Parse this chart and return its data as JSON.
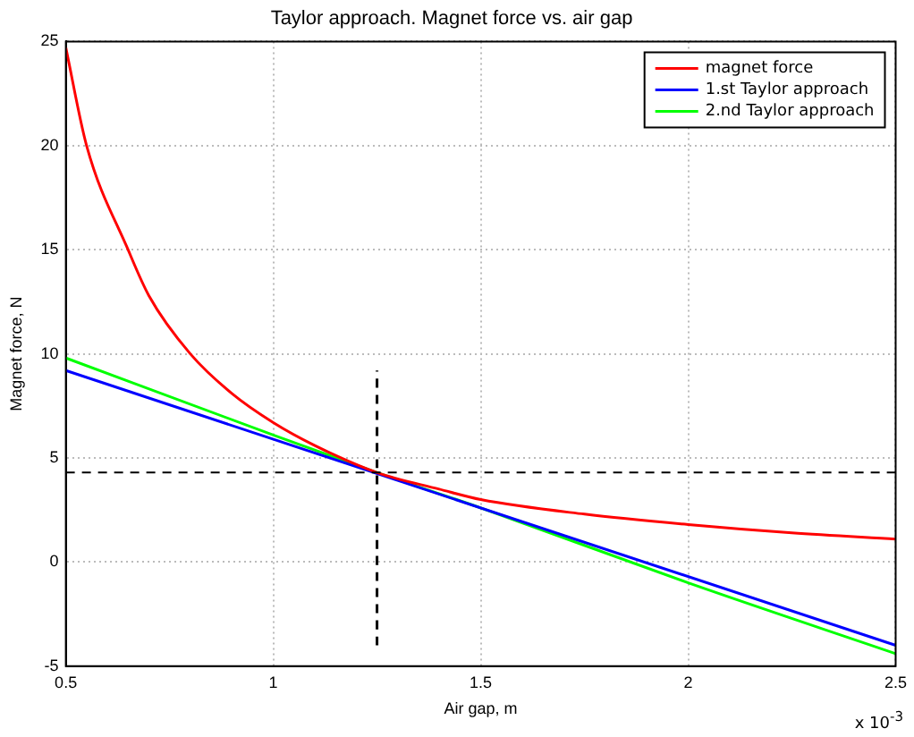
{
  "chart_data": {
    "type": "line",
    "title": "Taylor approach. Magnet force vs. air gap",
    "xlabel": "Air gap, m",
    "ylabel": "Magnet force, N",
    "xlim": [
      0.5,
      2.5
    ],
    "xticks": [
      0.5,
      1,
      1.5,
      2,
      2.5
    ],
    "ylim": [
      -5,
      25
    ],
    "yticks": [
      -5,
      0,
      5,
      10,
      15,
      20,
      25
    ],
    "grid": true,
    "legend": "top right",
    "marker": "none",
    "line_style": "solid",
    "ref_lines": [
      {
        "axis": "y",
        "value": 4.3,
        "color": "#000000",
        "line_style": "dashed"
      }
    ],
    "annotations": [
      "x 10$^{-3}$"
    ],
    "series": [
      {
        "name": "magnet force",
        "color": "#ff0000",
        "x": [
          0.5,
          0.55,
          0.65,
          0.7,
          0.8,
          0.9,
          1.0,
          1.1,
          1.25,
          1.4,
          1.5,
          1.75,
          2.0,
          2.25,
          2.5
        ],
        "values": [
          24.7,
          20,
          15,
          12.8,
          10,
          8.1,
          6.7,
          5.6,
          4.3,
          3.5,
          3.0,
          2.3,
          1.8,
          1.4,
          1.1
        ]
      },
      {
        "name": "1.st Taylor approach",
        "color": "#0000ff",
        "x": [
          0.5,
          2.5
        ],
        "values": [
          9.2,
          -4
        ]
      },
      {
        "name": "2.nd Taylor approach",
        "color": "#00ff00",
        "x": [
          0.5,
          1.0,
          1.25,
          1.5,
          2.0,
          2.5
        ],
        "values": [
          9.8,
          6.1,
          4.3,
          2.6,
          -1,
          -4.4
        ]
      },
      {
        "color": "#000000",
        "line_style": "dashed",
        "x": [
          1.25,
          1.25
        ],
        "values": [
          -4,
          9.2
        ]
      }
    ]
  }
}
